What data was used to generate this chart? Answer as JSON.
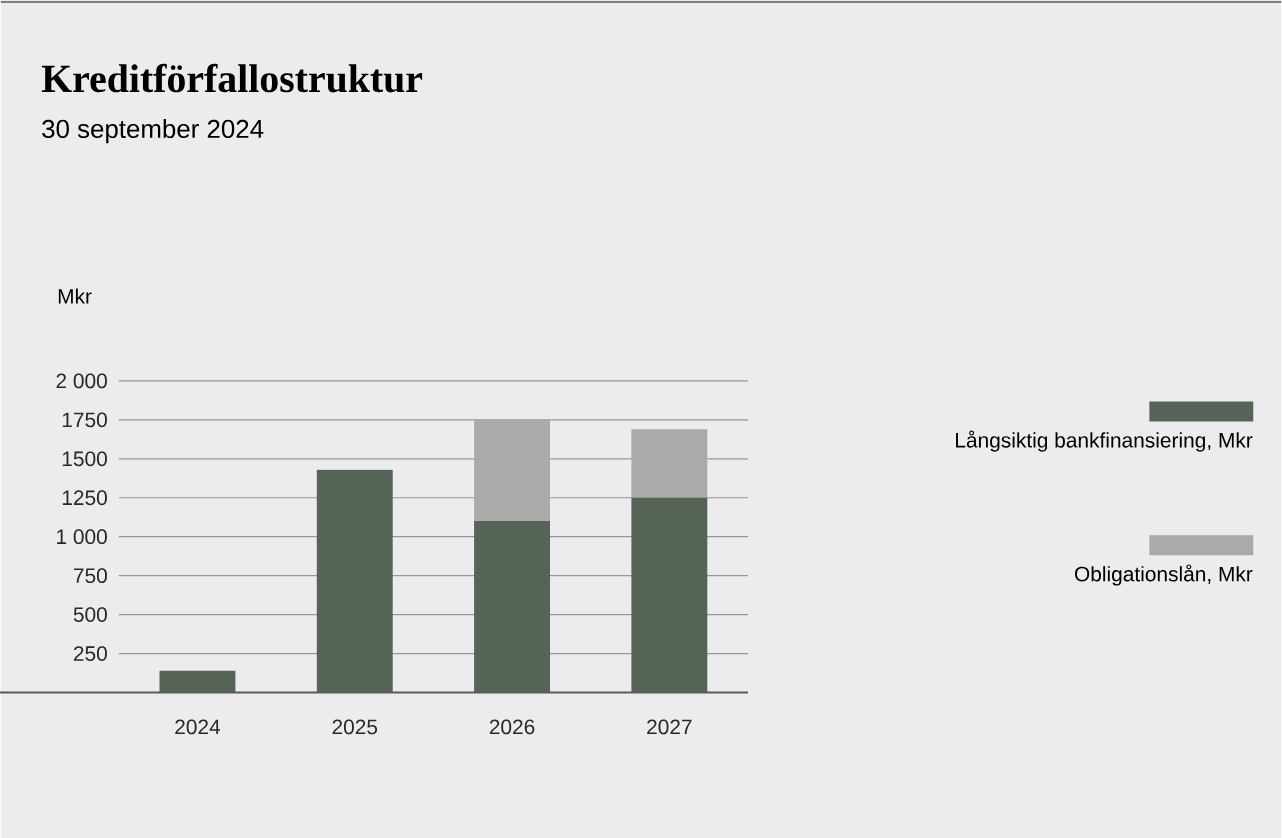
{
  "chart_data": {
    "type": "bar",
    "title": "Kreditförfallostruktur",
    "subtitle": "30 september 2024",
    "ylabel": "Mkr",
    "categories": [
      "2024",
      "2025",
      "2026",
      "2027"
    ],
    "series": [
      {
        "name": "Långsiktig bankfinansiering, Mkr",
        "color": "#566357",
        "values": [
          140,
          1430,
          1100,
          1250
        ]
      },
      {
        "name": "Obligationslån, Mkr",
        "color": "#a9aba8",
        "values": [
          null,
          null,
          650,
          440
        ]
      }
    ],
    "stacked": true,
    "ylim": [
      0,
      2000
    ],
    "yticks": [
      250,
      500,
      750,
      {
        "value": 1000,
        "label": "1 000"
      },
      1250,
      1500,
      1750,
      {
        "value": 2000,
        "label": "2 000"
      }
    ],
    "grid": "y",
    "legend": "right"
  }
}
